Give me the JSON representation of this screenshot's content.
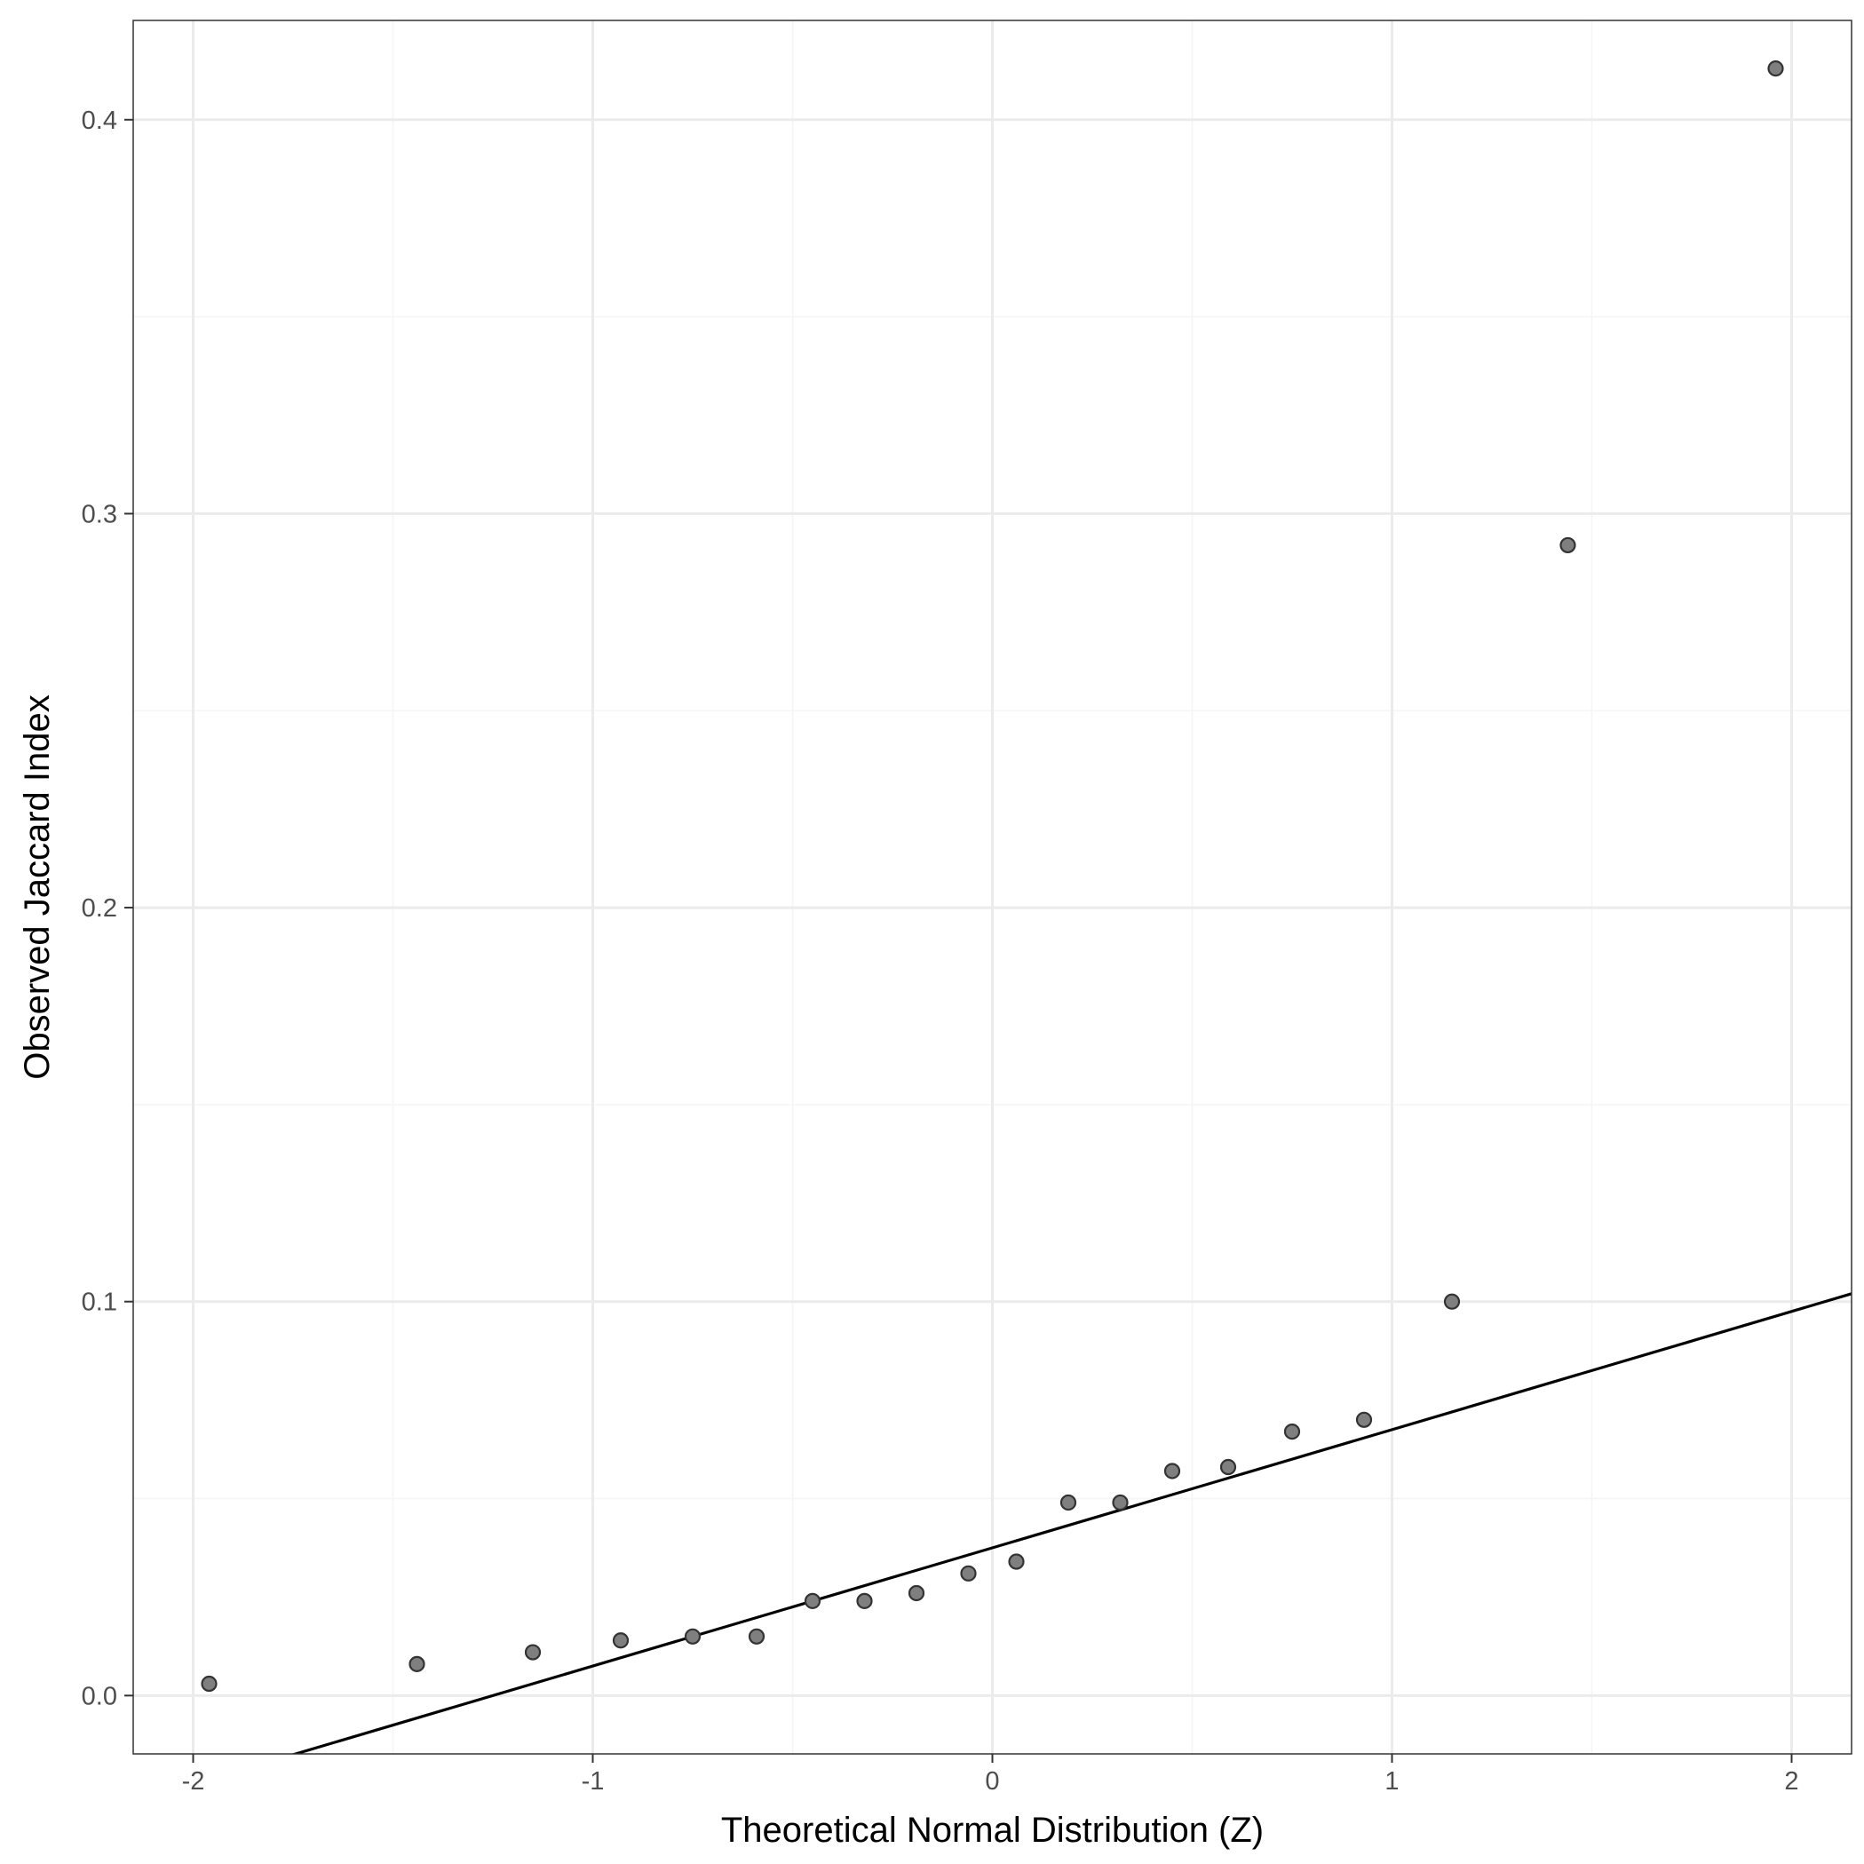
{
  "chart_data": {
    "type": "scatter",
    "title": "",
    "xlabel": "Theoretical Normal Distribution (Z)",
    "ylabel": "Observed Jaccard Index",
    "xlim": [
      -2.15,
      2.15
    ],
    "ylim": [
      -0.0148,
      0.4252
    ],
    "x_ticks": [
      -2,
      -1,
      0,
      1,
      2
    ],
    "x_tick_labels": [
      "-2",
      "-1",
      "0",
      "1",
      "2"
    ],
    "y_ticks": [
      0.0,
      0.1,
      0.2,
      0.3,
      0.4
    ],
    "y_tick_labels": [
      "0.0",
      "0.1",
      "0.2",
      "0.3",
      "0.4"
    ],
    "grid": true,
    "series": [
      {
        "type": "scatter",
        "points": [
          [
            -1.96,
            0.003
          ],
          [
            -1.44,
            0.008
          ],
          [
            -1.15,
            0.011
          ],
          [
            -0.93,
            0.014
          ],
          [
            -0.75,
            0.015
          ],
          [
            -0.59,
            0.015
          ],
          [
            -0.45,
            0.024
          ],
          [
            -0.32,
            0.024
          ],
          [
            -0.19,
            0.026
          ],
          [
            -0.06,
            0.031
          ],
          [
            0.06,
            0.034
          ],
          [
            0.19,
            0.049
          ],
          [
            0.32,
            0.049
          ],
          [
            0.45,
            0.057
          ],
          [
            0.59,
            0.058
          ],
          [
            0.75,
            0.067
          ],
          [
            0.93,
            0.07
          ],
          [
            1.15,
            0.1
          ],
          [
            1.44,
            0.292
          ],
          [
            1.96,
            0.413
          ]
        ],
        "color": "#4d4d4d"
      },
      {
        "type": "line",
        "slope": 0.03,
        "intercept": 0.0375,
        "color": "#000000"
      }
    ],
    "colors": {
      "background": "#ffffff",
      "panel_border": "#333333",
      "grid_major": "#ebebeb",
      "grid_minor": "#f5f5f5",
      "point_fill": "#7f7f7f",
      "point_stroke": "#333333",
      "line": "#000000"
    }
  }
}
